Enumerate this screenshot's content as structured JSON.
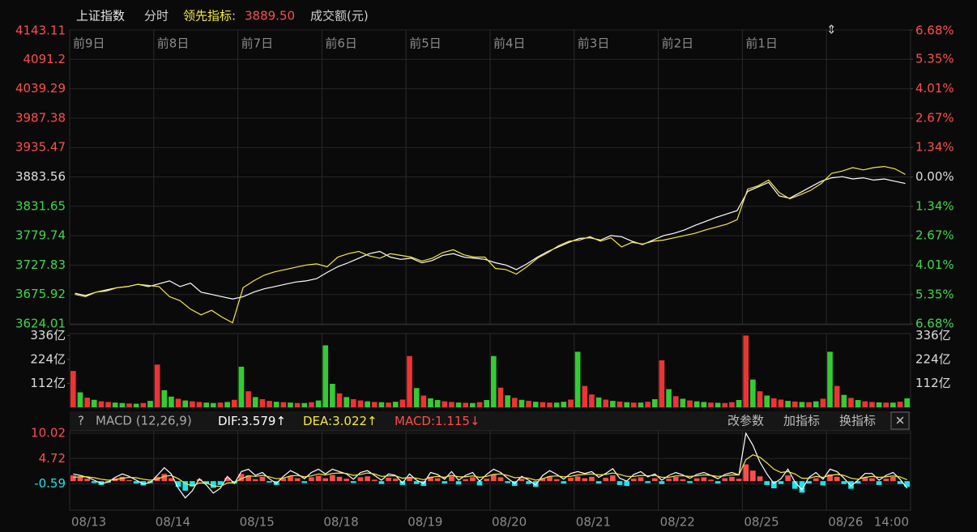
{
  "header": {
    "name": "上证指数",
    "mode": "分时",
    "lead_label": "领先指标:",
    "lead_value": "3889.50",
    "amount_label": "成交额(元)"
  },
  "chart_data": [
    {
      "type": "line",
      "categories": [
        "前9日",
        "前8日",
        "前7日",
        "前6日",
        "前5日",
        "前4日",
        "前3日",
        "前2日",
        "前1日",
        null
      ],
      "ylim": [
        3624.01,
        4143.11
      ],
      "yticks": [
        4143.11,
        4091.2,
        4039.29,
        3987.38,
        3935.47,
        3883.56,
        3831.65,
        3779.74,
        3727.83,
        3675.92,
        3624.01
      ],
      "y2lim": [
        -6.68,
        6.68
      ],
      "y2ticks": [
        {
          "value": 6.68,
          "label": "6.68%"
        },
        {
          "value": 5.35,
          "label": "5.35%"
        },
        {
          "value": 4.01,
          "label": "4.01%"
        },
        {
          "value": 2.67,
          "label": "2.67%"
        },
        {
          "value": 1.34,
          "label": "1.34%"
        },
        {
          "value": 0,
          "label": "0.00%"
        },
        {
          "value": -1.34,
          "label": "1.34%"
        },
        {
          "value": -2.67,
          "label": "2.67%"
        },
        {
          "value": -4.01,
          "label": "4.01%"
        },
        {
          "value": -5.35,
          "label": "5.35%"
        },
        {
          "value": -6.68,
          "label": "6.68%"
        }
      ],
      "up_color": "#ff4d4d",
      "down_color": "#3cd84a",
      "flat_color": "#dddddd",
      "grid": true,
      "series": [
        {
          "color": "#ffffff",
          "values": [
            [
              3678,
              3674,
              3680,
              3684,
              3688,
              3690,
              3694,
              3690
            ],
            [
              3695,
              3700,
              3690,
              3696,
              3680,
              3676,
              3672,
              3668
            ],
            [
              3672,
              3680,
              3686,
              3690,
              3694,
              3698,
              3700,
              3704
            ],
            [
              3715,
              3725,
              3732,
              3740,
              3748,
              3752,
              3742,
              3738
            ],
            [
              3740,
              3732,
              3736,
              3745,
              3748,
              3742,
              3740,
              3738
            ],
            [
              3732,
              3728,
              3720,
              3730,
              3742,
              3752,
              3760,
              3768
            ],
            [
              3775,
              3776,
              3772,
              3780,
              3778,
              3770,
              3764,
              3772
            ],
            [
              3780,
              3784,
              3790,
              3798,
              3805,
              3812,
              3818,
              3824
            ],
            [
              3858,
              3866,
              3874,
              3850,
              3846,
              3856,
              3866,
              3876
            ],
            [
              3882,
              3884,
              3880,
              3882,
              3878,
              3880,
              3876,
              3872
            ]
          ]
        },
        {
          "color": "#f5e93c",
          "values": [
            [
              3676,
              3672,
              3680,
              3682,
              3688,
              3690,
              3694,
              3692
            ],
            [
              3690,
              3672,
              3665,
              3650,
              3640,
              3648,
              3636,
              3626
            ],
            [
              3688,
              3700,
              3710,
              3716,
              3720,
              3724,
              3728,
              3730
            ],
            [
              3725,
              3742,
              3748,
              3752,
              3744,
              3740,
              3748,
              3745
            ],
            [
              3742,
              3735,
              3740,
              3750,
              3755,
              3746,
              3742,
              3742
            ],
            [
              3722,
              3720,
              3712,
              3725,
              3740,
              3750,
              3762,
              3770
            ],
            [
              3772,
              3778,
              3770,
              3776,
              3760,
              3768,
              3765,
              3770
            ],
            [
              3772,
              3776,
              3780,
              3784,
              3790,
              3795,
              3800,
              3808
            ],
            [
              3862,
              3868,
              3878,
              3856,
              3845,
              3852,
              3860,
              3872
            ],
            [
              3890,
              3894,
              3900,
              3896,
              3900,
              3902,
              3898,
              3888
            ]
          ]
        }
      ]
    },
    {
      "type": "bar",
      "ylim": [
        0,
        345
      ],
      "yticks": [
        {
          "value": 336,
          "label": "336亿"
        },
        {
          "value": 224,
          "label": "224亿"
        },
        {
          "value": 112,
          "label": "112亿"
        }
      ],
      "values": [
        [
          170,
          70,
          45,
          35,
          28,
          25,
          22,
          20,
          18,
          17,
          20,
          30
        ],
        [
          200,
          80,
          50,
          40,
          32,
          28,
          25,
          22,
          20,
          22,
          25,
          35
        ],
        [
          190,
          75,
          48,
          38,
          30,
          26,
          24,
          22,
          20,
          20,
          24,
          32
        ],
        [
          290,
          110,
          65,
          48,
          38,
          32,
          28,
          25,
          24,
          22,
          26,
          36
        ],
        [
          240,
          90,
          55,
          42,
          34,
          28,
          25,
          22,
          21,
          20,
          24,
          34
        ],
        [
          240,
          92,
          56,
          44,
          35,
          30,
          26,
          24,
          22,
          22,
          26,
          36
        ],
        [
          260,
          100,
          60,
          46,
          36,
          30,
          27,
          24,
          22,
          22,
          26,
          38
        ],
        [
          220,
          85,
          52,
          40,
          32,
          28,
          25,
          22,
          21,
          20,
          24,
          34
        ],
        [
          336,
          130,
          75,
          55,
          42,
          36,
          30,
          27,
          25,
          24,
          28,
          40
        ],
        [
          260,
          100,
          58,
          44,
          34,
          28,
          25,
          23,
          22,
          22,
          26,
          42
        ]
      ],
      "colors": [
        [
          "#e33",
          "#3c3",
          "#e33",
          "#3c3",
          "#e33",
          "#e33",
          "#3c3",
          "#3c3",
          "#e33",
          "#3c3",
          "#e33",
          "#3c3"
        ],
        [
          "#e33",
          "#3c3",
          "#3c3",
          "#e33",
          "#3c3",
          "#e33",
          "#e33",
          "#3c3",
          "#3c3",
          "#e33",
          "#3c3",
          "#e33"
        ],
        [
          "#3c3",
          "#e33",
          "#3c3",
          "#e33",
          "#e33",
          "#3c3",
          "#e33",
          "#3c3",
          "#e33",
          "#3c3",
          "#e33",
          "#3c3"
        ],
        [
          "#3c3",
          "#3c3",
          "#e33",
          "#3c3",
          "#e33",
          "#e33",
          "#3c3",
          "#e33",
          "#3c3",
          "#e33",
          "#3c3",
          "#e33"
        ],
        [
          "#e33",
          "#3c3",
          "#e33",
          "#3c3",
          "#3c3",
          "#e33",
          "#e33",
          "#3c3",
          "#e33",
          "#3c3",
          "#e33",
          "#3c3"
        ],
        [
          "#3c3",
          "#e33",
          "#3c3",
          "#e33",
          "#3c3",
          "#e33",
          "#3c3",
          "#e33",
          "#e33",
          "#3c3",
          "#3c3",
          "#e33"
        ],
        [
          "#3c3",
          "#e33",
          "#e33",
          "#3c3",
          "#e33",
          "#3c3",
          "#e33",
          "#3c3",
          "#e33",
          "#3c3",
          "#e33",
          "#3c3"
        ],
        [
          "#e33",
          "#3c3",
          "#e33",
          "#3c3",
          "#e33",
          "#3c3",
          "#3c3",
          "#e33",
          "#3c3",
          "#e33",
          "#e33",
          "#3c3"
        ],
        [
          "#e33",
          "#3c3",
          "#e33",
          "#3c3",
          "#e33",
          "#e33",
          "#3c3",
          "#e33",
          "#3c3",
          "#e33",
          "#3c3",
          "#e33"
        ],
        [
          "#3c3",
          "#e33",
          "#3c3",
          "#e33",
          "#3c3",
          "#e33",
          "#e33",
          "#3c3",
          "#e33",
          "#3c3",
          "#e33",
          "#3c3"
        ]
      ]
    },
    {
      "type": "macd",
      "help": "?",
      "title": "MACD (12,26,9)",
      "dif_label": "DIF:",
      "dif": 3.579,
      "dif_arrow": "↑",
      "dea_label": "DEA:",
      "dea": 3.022,
      "dea_arrow": "↑",
      "macd_label": "MACD:",
      "macd": 1.115,
      "macd_arrow": "↓",
      "buttons": [
        "改参数",
        "加指标",
        "换指标"
      ],
      "close": "✕",
      "categories": [
        "08/13",
        "08/14",
        "08/15",
        "08/18",
        "08/19",
        "08/20",
        "08/21",
        "08/22",
        "08/25",
        "08/26"
      ],
      "x_end_label": "14:00",
      "ylim": [
        -6.06,
        10.52
      ],
      "yticks": [
        10.02,
        4.72,
        -0.59
      ],
      "up_color": "#ff4d4d",
      "down_color": "#18e6f0",
      "dif_color": "#ffffff",
      "dea_color": "#f5e93c",
      "hist": [
        [
          1.2,
          0.8,
          0.5,
          -0.4,
          -0.8,
          -0.3,
          0.6,
          0.9,
          0.2,
          -0.5,
          -0.9,
          -0.4
        ],
        [
          0.9,
          1.5,
          0.6,
          -1.2,
          -2.0,
          -1.1,
          0.4,
          -0.6,
          -1.4,
          -0.8,
          0.7,
          -0.5
        ],
        [
          1.5,
          1.2,
          0.4,
          0.9,
          -0.3,
          -0.8,
          0.5,
          1.0,
          0.6,
          -0.4,
          0.8,
          1.1
        ],
        [
          0.6,
          1.3,
          0.9,
          0.5,
          -0.4,
          0.8,
          1.0,
          0.3,
          -0.6,
          0.7,
          0.5,
          -0.8
        ],
        [
          0.8,
          -0.6,
          -1.0,
          0.9,
          0.6,
          -0.5,
          1.0,
          -0.7,
          0.4,
          0.8,
          -0.9,
          0.5
        ],
        [
          1.4,
          0.8,
          -0.4,
          -1.0,
          0.5,
          -0.6,
          -1.2,
          0.6,
          1.0,
          0.4,
          -0.5,
          0.7
        ],
        [
          1.0,
          0.6,
          0.9,
          -0.5,
          0.7,
          1.2,
          -0.8,
          -1.0,
          0.5,
          0.8,
          -0.4,
          0.6
        ],
        [
          -0.6,
          0.5,
          0.9,
          0.4,
          -0.4,
          0.6,
          0.8,
          0.3,
          -0.5,
          0.6,
          0.9,
          0.5
        ],
        [
          3.5,
          2.2,
          1.0,
          -0.8,
          -1.5,
          -0.6,
          1.2,
          -1.6,
          -2.4,
          -0.5,
          0.6,
          -0.9
        ],
        [
          1.4,
          0.9,
          -0.6,
          -1.6,
          -0.5,
          0.8,
          0.6,
          -0.8,
          0.5,
          0.9,
          -0.6,
          -1.2
        ]
      ],
      "dif_values": [
        [
          1.5,
          1.2,
          0.8,
          0.2,
          -0.5,
          -0.2,
          0.8,
          1.5,
          1.0,
          0.2,
          -0.6,
          -0.3
        ],
        [
          1.2,
          2.8,
          1.5,
          -1.5,
          -3.5,
          -2.0,
          0.5,
          -0.8,
          -2.5,
          -1.5,
          1.0,
          -0.5
        ],
        [
          2.0,
          2.5,
          1.2,
          1.8,
          0.5,
          -0.5,
          1.0,
          2.2,
          1.5,
          0.5,
          1.8,
          2.5
        ],
        [
          1.5,
          2.5,
          2.0,
          1.5,
          0.4,
          1.8,
          2.2,
          1.2,
          0.2,
          1.5,
          1.2,
          -0.4
        ],
        [
          1.5,
          0.2,
          -0.5,
          1.8,
          1.4,
          0.4,
          2.0,
          0.2,
          1.2,
          1.8,
          0.0,
          1.4
        ],
        [
          2.5,
          1.8,
          0.6,
          -0.5,
          1.0,
          0.2,
          -0.8,
          1.2,
          2.2,
          1.4,
          0.4,
          1.6
        ],
        [
          2.0,
          1.6,
          2.0,
          0.8,
          1.6,
          2.6,
          0.6,
          0.0,
          1.4,
          2.0,
          0.9,
          1.5
        ],
        [
          0.2,
          1.2,
          1.8,
          1.3,
          0.6,
          1.4,
          1.8,
          1.2,
          0.5,
          1.4,
          1.8,
          1.3
        ],
        [
          10.0,
          7.5,
          4.0,
          1.5,
          -0.5,
          0.5,
          2.5,
          -0.2,
          -1.8,
          0.8,
          1.8,
          0.4
        ],
        [
          2.5,
          2.0,
          0.6,
          -1.0,
          0.2,
          1.6,
          1.6,
          0.2,
          1.2,
          1.8,
          0.4,
          -1.5
        ]
      ],
      "dea_values": [
        [
          0.8,
          0.9,
          0.9,
          0.7,
          0.4,
          0.2,
          0.3,
          0.6,
          0.8,
          0.7,
          0.4,
          0.2
        ],
        [
          0.4,
          1.0,
          1.2,
          0.5,
          -0.5,
          -1.0,
          -0.4,
          -0.4,
          -1.0,
          -1.1,
          -0.4,
          -0.3
        ],
        [
          0.5,
          1.1,
          1.0,
          1.2,
          0.9,
          0.5,
          0.6,
          1.1,
          1.2,
          0.9,
          1.1,
          1.5
        ],
        [
          1.3,
          1.6,
          1.7,
          1.6,
          1.2,
          1.4,
          1.7,
          1.5,
          1.0,
          1.1,
          1.1,
          0.6
        ],
        [
          0.8,
          0.6,
          0.3,
          0.8,
          1.0,
          0.8,
          1.2,
          0.9,
          0.9,
          1.1,
          0.8,
          1.0
        ],
        [
          1.4,
          1.5,
          1.2,
          0.7,
          0.8,
          0.6,
          0.2,
          0.5,
          1.0,
          1.1,
          0.9,
          1.0
        ],
        [
          1.3,
          1.4,
          1.5,
          1.3,
          1.4,
          1.7,
          1.4,
          1.0,
          1.0,
          1.2,
          1.1,
          1.2
        ],
        [
          0.8,
          0.8,
          1.1,
          1.1,
          1.0,
          1.1,
          1.3,
          1.2,
          1.0,
          1.1,
          1.3,
          1.3
        ],
        [
          4.5,
          5.5,
          5.0,
          3.8,
          2.5,
          1.8,
          2.0,
          1.5,
          0.6,
          0.6,
          1.0,
          0.8
        ],
        [
          1.2,
          1.4,
          1.2,
          0.6,
          0.4,
          0.8,
          1.0,
          0.8,
          0.9,
          1.1,
          0.9,
          0.3
        ]
      ]
    }
  ]
}
